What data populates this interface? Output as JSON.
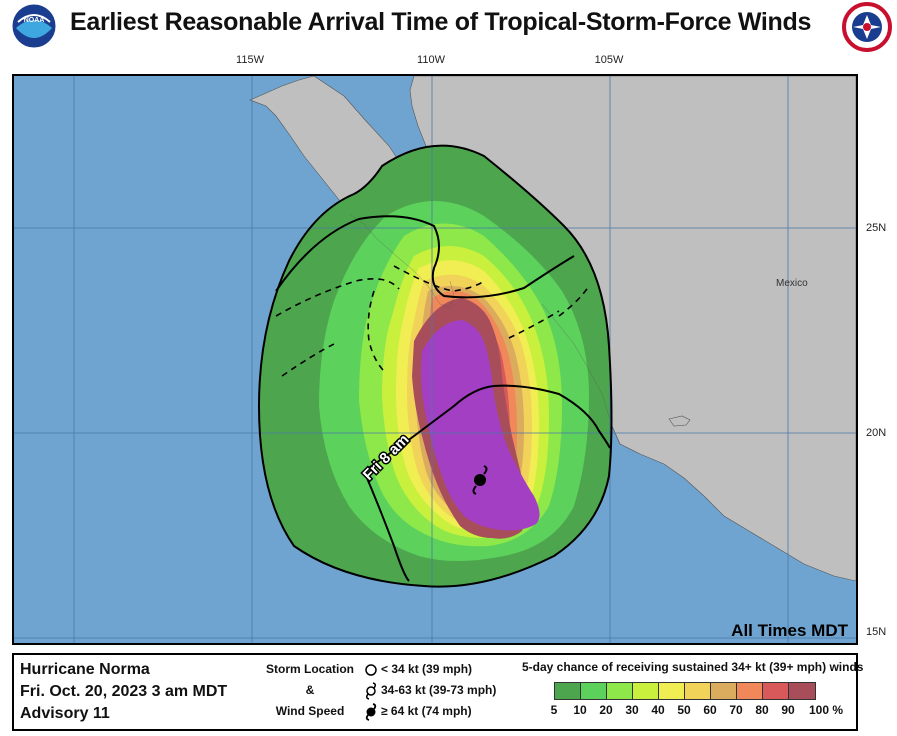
{
  "title": "Earliest Reasonable Arrival Time of Tropical-Storm-Force Winds",
  "logos": {
    "left": "noaa-logo",
    "right": "nws-logo"
  },
  "map": {
    "longitude_labels": [
      "115W",
      "110W",
      "105W"
    ],
    "latitude_labels": [
      "25N",
      "20N",
      "15N"
    ],
    "place_label": "Mexico",
    "track_label": "Fri  8 am",
    "times_note": "All Times MDT",
    "colors": {
      "ocean": "#6fa3d0",
      "land": "#bfbfbf",
      "grid": "#4a78a8"
    },
    "storm_position": {
      "lat": 18.7,
      "lon": -108.7
    }
  },
  "storm_info": {
    "name": "Hurricane Norma",
    "datetime": "Fri. Oct. 20, 2023  3 am MDT",
    "advisory": "Advisory 11"
  },
  "storm_key": {
    "heading_1": "Storm Location",
    "heading_amp": "&",
    "heading_2": "Wind Speed",
    "items": [
      {
        "icon": "open-circle-icon",
        "label": "< 34 kt (39 mph)"
      },
      {
        "icon": "tropical-storm-icon",
        "label": "34-63 kt (39-73 mph)"
      },
      {
        "icon": "hurricane-icon",
        "label": "≥ 64 kt (74 mph)"
      }
    ]
  },
  "probability_legend": {
    "title": "5-day chance of receiving sustained 34+ kt (39+ mph) winds",
    "ticks": [
      "5",
      "10",
      "20",
      "30",
      "40",
      "50",
      "60",
      "70",
      "80",
      "90",
      "100 %"
    ],
    "colors": [
      "#4da64d",
      "#5cd15c",
      "#8ee84a",
      "#c8f03c",
      "#f0ee52",
      "#f2d35a",
      "#dcac5e",
      "#f0885a",
      "#d9585a",
      "#a84e5a",
      "#a33fc2"
    ]
  }
}
